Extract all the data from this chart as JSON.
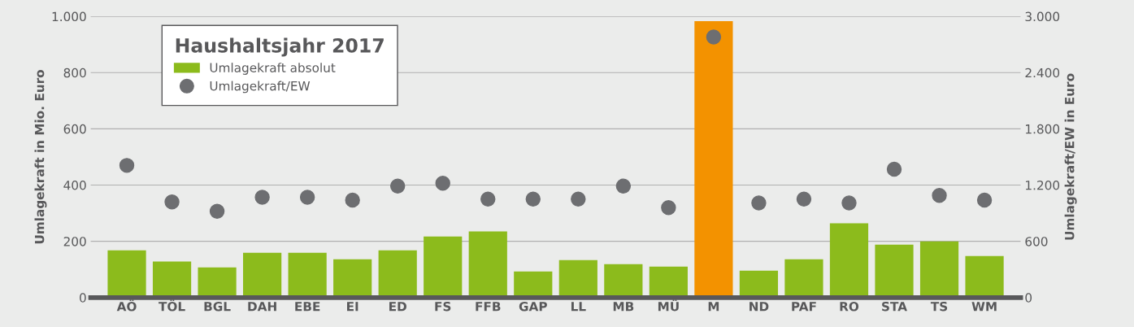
{
  "chart_data": {
    "type": "bar",
    "categories": [
      "AÖ",
      "TÖL",
      "BGL",
      "DAH",
      "EBE",
      "EI",
      "ED",
      "FS",
      "FFB",
      "GAP",
      "LL",
      "MB",
      "MÜ",
      "M",
      "ND",
      "PAF",
      "RO",
      "STA",
      "TS",
      "WM"
    ],
    "series": [
      {
        "name": "Umlagekraft absolut",
        "color": "#8cbb1c",
        "colors": [
          "#8cbb1c",
          "#8cbb1c",
          "#8cbb1c",
          "#8cbb1c",
          "#8cbb1c",
          "#8cbb1c",
          "#8cbb1c",
          "#8cbb1c",
          "#8cbb1c",
          "#8cbb1c",
          "#8cbb1c",
          "#8cbb1c",
          "#8cbb1c",
          "#f39200",
          "#8cbb1c",
          "#8cbb1c",
          "#8cbb1c",
          "#8cbb1c",
          "#8cbb1c",
          "#8cbb1c"
        ],
        "values": [
          168,
          128,
          107,
          159,
          159,
          136,
          168,
          217,
          235,
          93,
          133,
          119,
          110,
          983,
          96,
          136,
          264,
          188,
          200,
          148
        ]
      },
      {
        "name": "Umlagekraft/EW",
        "type": "scatter",
        "axis": "y2",
        "color": "#6d6e71",
        "values": [
          1410,
          1020,
          920,
          1070,
          1070,
          1040,
          1190,
          1220,
          1050,
          1050,
          1050,
          1190,
          960,
          2780,
          1010,
          1050,
          1010,
          1370,
          1090,
          1040
        ]
      }
    ],
    "ylabel": "Umlagekraft in Mio. Euro",
    "y2label": "Umlagekraft/EW in Euro",
    "ylim": [
      0,
      1000
    ],
    "yticks": [
      0,
      200,
      400,
      600,
      800,
      {
        "value": 1000,
        "label": "1.000"
      }
    ],
    "y2lim": [
      0,
      3000
    ],
    "y2ticks": [
      0,
      600,
      {
        "value": 1200,
        "label": "1.200"
      },
      {
        "value": 1800,
        "label": "1.800"
      },
      {
        "value": 2400,
        "label": "2.400"
      },
      {
        "value": 3000,
        "label": "3.000"
      }
    ],
    "grid": "y",
    "legend": "top left",
    "legend_title": "Haushaltsjahr 2017",
    "marker": "circle"
  }
}
